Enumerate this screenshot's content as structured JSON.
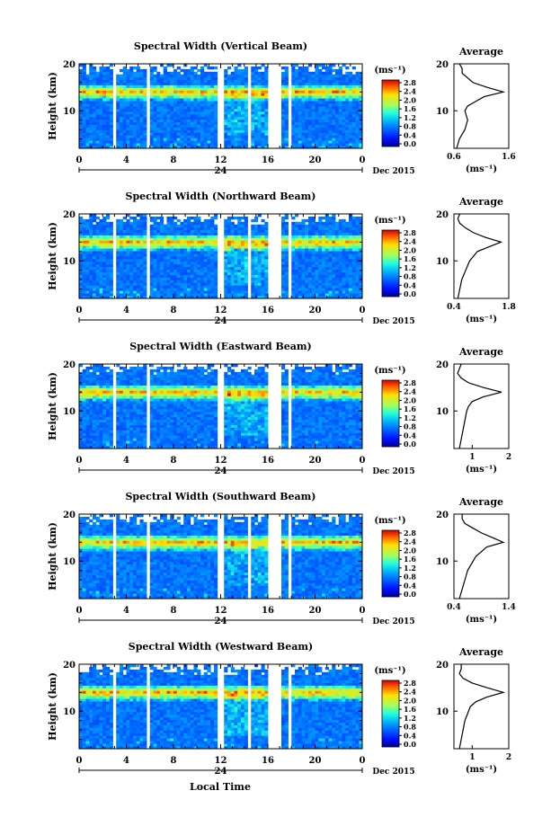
{
  "figure": {
    "x_axis_label": "Local Time",
    "date_label": "Dec 2015",
    "day_label": "24",
    "y_axis_label": "Height (km)",
    "colorbar_unit": "(ms⁻¹)",
    "colorbar_ticks": [
      "0.0",
      "0.4",
      "0.8",
      "1.2",
      "1.6",
      "2.0",
      "2.4",
      "2.8"
    ],
    "average_title": "Average",
    "average_unit": "(ms⁻¹)",
    "x_ticks": [
      "0",
      "4",
      "8",
      "12",
      "16",
      "20",
      "0"
    ],
    "y_ticks": [
      "20",
      "10"
    ]
  },
  "chart_data": [
    {
      "type": "heatmap",
      "title": "Spectral Width (Vertical Beam)",
      "x_range_hours": [
        0,
        24
      ],
      "y_range_km": [
        2,
        20
      ],
      "color_range_ms": [
        0.0,
        2.8
      ],
      "data_gaps_hours": [
        [
          2.8,
          3.1
        ],
        [
          5.8,
          6.0
        ],
        [
          11.7,
          12.3
        ],
        [
          14.3,
          14.5
        ],
        [
          16.1,
          17.1
        ],
        [
          17.7,
          18.0
        ]
      ],
      "peak_layer_km": 14,
      "average_profile": {
        "xlim": [
          0.6,
          1.6
        ],
        "xticks": [
          "0.6",
          "1.6"
        ],
        "height_km": [
          2,
          4,
          6,
          8,
          10,
          11,
          12,
          13,
          14,
          15,
          16,
          17,
          18,
          19,
          20
        ],
        "width_ms": [
          0.65,
          0.7,
          0.8,
          0.85,
          0.8,
          0.85,
          1.0,
          1.15,
          1.5,
          1.2,
          0.95,
          0.85,
          0.75,
          0.75,
          0.7
        ]
      }
    },
    {
      "type": "heatmap",
      "title": "Spectral Width (Northward Beam)",
      "x_range_hours": [
        0,
        24
      ],
      "y_range_km": [
        2,
        20
      ],
      "color_range_ms": [
        0.0,
        2.8
      ],
      "data_gaps_hours": [
        [
          2.8,
          3.1
        ],
        [
          5.8,
          6.0
        ],
        [
          11.7,
          12.3
        ],
        [
          14.3,
          14.5
        ],
        [
          16.1,
          17.1
        ],
        [
          17.7,
          18.0
        ]
      ],
      "peak_layer_km": 14,
      "average_profile": {
        "xlim": [
          0.4,
          1.8
        ],
        "xticks": [
          "0.4",
          "1.8"
        ],
        "height_km": [
          2,
          4,
          6,
          8,
          10,
          11,
          12,
          13,
          14,
          15,
          16,
          17,
          18,
          19,
          20
        ],
        "width_ms": [
          0.5,
          0.55,
          0.6,
          0.7,
          0.8,
          0.9,
          1.0,
          1.3,
          1.6,
          1.2,
          0.9,
          0.7,
          0.55,
          0.5,
          0.55
        ]
      }
    },
    {
      "type": "heatmap",
      "title": "Spectral Width (Eastward Beam)",
      "x_range_hours": [
        0,
        24
      ],
      "y_range_km": [
        2,
        20
      ],
      "color_range_ms": [
        0.0,
        2.8
      ],
      "data_gaps_hours": [
        [
          2.8,
          3.1
        ],
        [
          5.8,
          6.0
        ],
        [
          11.7,
          12.3
        ],
        [
          16.1,
          17.1
        ],
        [
          17.7,
          18.0
        ]
      ],
      "peak_layer_km": 14,
      "average_profile": {
        "xlim": [
          0.5,
          2.0
        ],
        "xticks": [
          "1",
          "2"
        ],
        "height_km": [
          2,
          4,
          6,
          8,
          10,
          11,
          12,
          13,
          14,
          15,
          16,
          17,
          18,
          19,
          20
        ],
        "width_ms": [
          0.65,
          0.7,
          0.75,
          0.8,
          0.85,
          0.9,
          1.0,
          1.3,
          1.8,
          1.3,
          0.9,
          0.7,
          0.6,
          0.65,
          0.7
        ]
      }
    },
    {
      "type": "heatmap",
      "title": "Spectral Width (Southward Beam)",
      "x_range_hours": [
        0,
        24
      ],
      "y_range_km": [
        2,
        20
      ],
      "color_range_ms": [
        0.0,
        2.8
      ],
      "data_gaps_hours": [
        [
          2.8,
          3.1
        ],
        [
          5.8,
          6.0
        ],
        [
          11.7,
          12.3
        ],
        [
          14.3,
          14.5
        ],
        [
          16.1,
          17.1
        ],
        [
          17.7,
          18.0
        ]
      ],
      "peak_layer_km": 14,
      "average_profile": {
        "xlim": [
          0.4,
          1.4
        ],
        "xticks": [
          "0.4",
          "1.4"
        ],
        "height_km": [
          2,
          4,
          6,
          8,
          10,
          11,
          12,
          13,
          14,
          15,
          16,
          17,
          18,
          19,
          20
        ],
        "width_ms": [
          0.5,
          0.55,
          0.6,
          0.65,
          0.75,
          0.8,
          0.9,
          1.0,
          1.3,
          1.1,
          0.9,
          0.75,
          0.6,
          0.55,
          0.55
        ]
      }
    },
    {
      "type": "heatmap",
      "title": "Spectral Width (Westward Beam)",
      "x_range_hours": [
        0,
        24
      ],
      "y_range_km": [
        2,
        20
      ],
      "color_range_ms": [
        0.0,
        2.8
      ],
      "data_gaps_hours": [
        [
          2.8,
          3.1
        ],
        [
          5.8,
          6.0
        ],
        [
          11.7,
          12.3
        ],
        [
          14.3,
          14.5
        ],
        [
          16.1,
          17.1
        ],
        [
          17.7,
          18.0
        ]
      ],
      "peak_layer_km": 14,
      "average_profile": {
        "xlim": [
          0.5,
          2.0
        ],
        "xticks": [
          "1",
          "2"
        ],
        "height_km": [
          2,
          4,
          6,
          8,
          10,
          11,
          12,
          13,
          14,
          15,
          16,
          17,
          18,
          19,
          20
        ],
        "width_ms": [
          0.65,
          0.7,
          0.75,
          0.8,
          0.9,
          0.95,
          1.1,
          1.4,
          1.85,
          1.4,
          1.0,
          0.75,
          0.65,
          0.7,
          0.7
        ]
      }
    }
  ]
}
